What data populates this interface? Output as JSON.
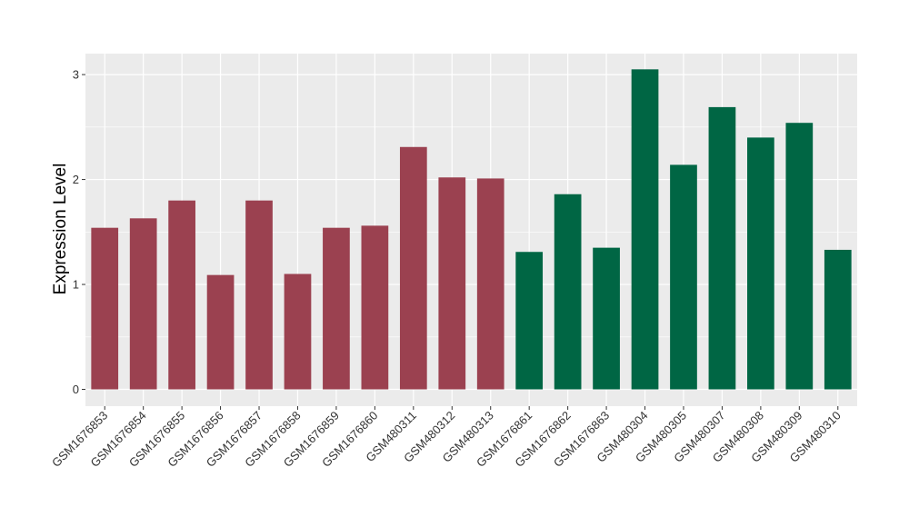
{
  "chart_data": {
    "type": "bar",
    "title": "",
    "xlabel": "",
    "ylabel": "Expression Level",
    "ylim": [
      -0.16,
      3.2
    ],
    "yticks": [
      0,
      1,
      2,
      3
    ],
    "grid": true,
    "categories": [
      "GSM1676853",
      "GSM1676854",
      "GSM1676855",
      "GSM1676856",
      "GSM1676857",
      "GSM1676858",
      "GSM1676859",
      "GSM1676860",
      "GSM480311",
      "GSM480312",
      "GSM480313",
      "GSM1676861",
      "GSM1676862",
      "GSM1676863",
      "GSM480304",
      "GSM480305",
      "GSM480307",
      "GSM480308",
      "GSM480309",
      "GSM480310"
    ],
    "values": [
      1.54,
      1.63,
      1.8,
      1.09,
      1.8,
      1.1,
      1.54,
      1.56,
      2.31,
      2.02,
      2.01,
      1.31,
      1.86,
      1.35,
      3.05,
      2.14,
      2.69,
      2.4,
      2.54,
      1.33
    ],
    "group_index": [
      0,
      0,
      0,
      0,
      0,
      0,
      0,
      0,
      0,
      0,
      0,
      1,
      1,
      1,
      1,
      1,
      1,
      1,
      1,
      1
    ],
    "group_colors": [
      "#9b4150",
      "#006644"
    ],
    "panel_color": "#ebebeb",
    "grid_color": "#ffffff"
  }
}
